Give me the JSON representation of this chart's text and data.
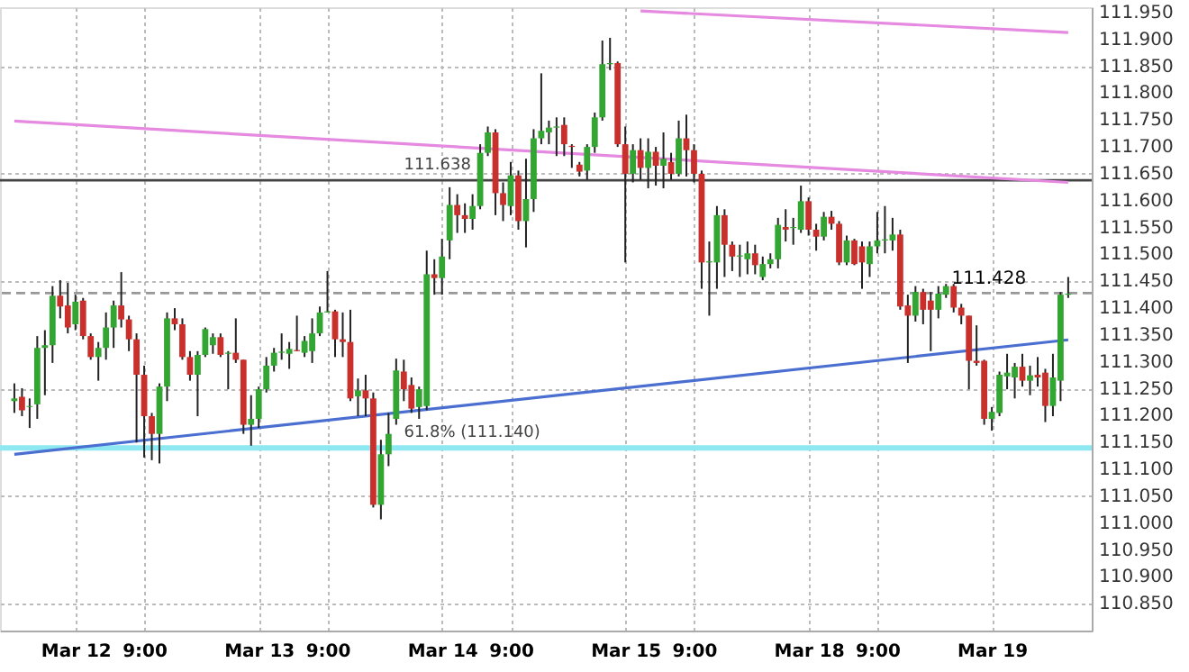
{
  "chart_data": {
    "type": "candlestick",
    "categories": [
      null,
      null,
      null,
      null,
      null,
      null,
      null,
      null,
      "Mar 12",
      null,
      null,
      null,
      null,
      null,
      null,
      null,
      null,
      "9:00",
      null,
      null,
      null,
      null,
      null,
      null,
      null,
      null,
      null,
      null,
      null,
      null,
      null,
      null,
      "Mar 13",
      null,
      null,
      null,
      null,
      null,
      null,
      null,
      null,
      "9:00",
      null,
      null,
      null,
      null,
      null,
      null,
      null,
      null,
      null,
      null,
      null,
      null,
      null,
      null,
      "Mar 14",
      null,
      null,
      null,
      null,
      null,
      null,
      null,
      null,
      "9:00",
      null,
      null,
      null,
      null,
      null,
      null,
      null,
      null,
      null,
      null,
      null,
      null,
      null,
      null,
      "Mar 15",
      null,
      null,
      null,
      null,
      null,
      null,
      null,
      null,
      "9:00",
      null,
      null,
      null,
      null,
      null,
      null,
      null,
      null,
      null,
      null,
      null,
      null,
      null,
      null,
      "Mar 18",
      null,
      null,
      null,
      null,
      null,
      null,
      null,
      null,
      "9:00",
      null,
      null,
      null,
      null,
      null,
      null,
      null,
      null,
      null,
      null,
      null,
      null,
      null,
      null,
      "Mar 19",
      null,
      null,
      null,
      null,
      null,
      null,
      null,
      null,
      null,
      null
    ],
    "ohlc": [
      [
        111.227,
        111.26,
        111.205,
        111.232
      ],
      [
        111.235,
        111.251,
        111.199,
        111.21
      ],
      [
        111.216,
        111.232,
        111.177,
        111.218
      ],
      [
        111.221,
        111.348,
        111.194,
        111.326
      ],
      [
        111.326,
        111.359,
        111.238,
        111.331
      ],
      [
        111.331,
        111.441,
        111.298,
        111.423
      ],
      [
        111.423,
        111.452,
        111.381,
        111.403
      ],
      [
        111.405,
        111.447,
        111.353,
        111.364
      ],
      [
        111.37,
        111.425,
        111.359,
        111.412
      ],
      [
        111.414,
        111.419,
        111.342,
        111.348
      ],
      [
        111.348,
        111.353,
        111.304,
        111.309
      ],
      [
        111.309,
        111.337,
        111.265,
        111.326
      ],
      [
        111.326,
        111.392,
        111.304,
        111.364
      ],
      [
        111.364,
        111.414,
        111.326,
        111.405
      ],
      [
        111.405,
        111.467,
        111.364,
        111.379
      ],
      [
        111.379,
        111.386,
        111.32,
        111.342
      ],
      [
        111.342,
        111.353,
        111.15,
        111.276
      ],
      [
        111.276,
        111.293,
        111.122,
        111.199
      ],
      [
        111.199,
        111.205,
        111.117,
        111.166
      ],
      [
        111.166,
        111.26,
        111.111,
        111.254
      ],
      [
        111.254,
        111.392,
        111.227,
        111.381
      ],
      [
        111.381,
        111.4,
        111.359,
        111.37
      ],
      [
        111.37,
        111.381,
        111.304,
        111.309
      ],
      [
        111.309,
        111.32,
        111.265,
        111.276
      ],
      [
        111.276,
        111.32,
        111.199,
        111.313
      ],
      [
        111.313,
        111.364,
        111.309,
        111.361
      ],
      [
        111.331,
        111.353,
        111.315,
        111.346
      ],
      [
        111.346,
        111.353,
        111.309,
        111.313
      ],
      [
        111.315,
        111.32,
        111.249,
        111.317
      ],
      [
        111.317,
        111.381,
        111.298,
        111.304
      ],
      [
        111.304,
        111.304,
        111.166,
        111.183
      ],
      [
        111.183,
        111.238,
        111.144,
        111.194
      ],
      [
        111.194,
        111.254,
        111.177,
        111.249
      ],
      [
        111.249,
        111.309,
        111.243,
        111.293
      ],
      [
        111.293,
        111.326,
        111.282,
        111.317
      ],
      [
        111.317,
        111.353,
        111.304,
        111.319
      ],
      [
        111.315,
        111.337,
        111.287,
        111.324
      ],
      [
        111.322,
        111.386,
        111.32,
        111.32
      ],
      [
        111.317,
        111.348,
        111.309,
        111.339
      ],
      [
        111.32,
        111.381,
        111.298,
        111.353
      ],
      [
        111.353,
        111.403,
        111.348,
        111.392
      ],
      [
        111.392,
        111.469,
        111.392,
        111.394
      ],
      [
        111.394,
        111.397,
        111.309,
        111.342
      ],
      [
        111.342,
        111.392,
        111.309,
        111.337
      ],
      [
        111.337,
        111.397,
        111.227,
        111.232
      ],
      [
        111.236,
        111.269,
        111.199,
        111.247
      ],
      [
        111.247,
        111.276,
        111.199,
        111.232
      ],
      [
        111.232,
        111.243,
        111.029,
        111.034
      ],
      [
        111.034,
        111.155,
        111.007,
        111.128
      ],
      [
        111.128,
        111.205,
        111.106,
        111.166
      ],
      [
        111.194,
        111.306,
        111.183,
        111.284
      ],
      [
        111.282,
        111.304,
        111.227,
        111.249
      ],
      [
        111.257,
        111.271,
        111.205,
        111.213
      ],
      [
        111.216,
        111.254,
        111.194,
        111.249
      ],
      [
        111.218,
        111.507,
        111.21,
        111.463
      ],
      [
        111.463,
        111.491,
        111.425,
        111.456
      ],
      [
        111.456,
        111.529,
        111.425,
        111.496
      ],
      [
        111.526,
        111.625,
        111.491,
        111.592
      ],
      [
        111.592,
        111.612,
        111.54,
        111.573
      ],
      [
        111.573,
        111.595,
        111.54,
        111.566
      ],
      [
        111.566,
        111.612,
        111.546,
        111.59
      ],
      [
        111.59,
        111.705,
        111.584,
        111.689
      ],
      [
        111.689,
        111.738,
        111.683,
        111.727
      ],
      [
        111.727,
        111.733,
        111.573,
        111.614
      ],
      [
        111.614,
        111.634,
        111.562,
        111.592
      ],
      [
        111.59,
        111.672,
        111.573,
        111.647
      ],
      [
        111.647,
        111.656,
        111.546,
        111.562
      ],
      [
        111.562,
        111.678,
        111.513,
        111.603
      ],
      [
        111.603,
        111.733,
        111.579,
        111.716
      ],
      [
        111.716,
        111.837,
        111.705,
        111.73
      ],
      [
        111.727,
        111.749,
        111.705,
        111.736
      ],
      [
        111.736,
        111.755,
        111.683,
        111.738
      ],
      [
        111.741,
        111.755,
        111.683,
        111.705
      ],
      [
        111.702,
        111.705,
        111.661,
        111.7
      ],
      [
        111.667,
        111.672,
        111.645,
        111.654
      ],
      [
        111.656,
        111.705,
        111.639,
        111.7
      ],
      [
        111.7,
        111.764,
        111.689,
        111.755
      ],
      [
        111.755,
        111.898,
        111.749,
        111.854
      ],
      [
        111.854,
        111.903,
        111.843,
        111.856
      ],
      [
        111.856,
        111.859,
        111.7,
        111.705
      ],
      [
        111.705,
        111.738,
        111.485,
        111.65
      ],
      [
        111.65,
        111.705,
        111.634,
        111.694
      ],
      [
        111.694,
        111.716,
        111.639,
        111.661
      ],
      [
        111.661,
        111.716,
        111.623,
        111.691
      ],
      [
        111.691,
        111.7,
        111.628,
        111.665
      ],
      [
        111.665,
        111.727,
        111.623,
        111.678
      ],
      [
        111.672,
        111.689,
        111.639,
        111.65
      ],
      [
        111.65,
        111.749,
        111.645,
        111.716
      ],
      [
        111.716,
        111.76,
        111.645,
        111.694
      ],
      [
        111.694,
        111.705,
        111.634,
        111.65
      ],
      [
        111.65,
        111.656,
        111.436,
        111.485
      ],
      [
        111.485,
        111.524,
        111.386,
        111.487
      ],
      [
        111.485,
        111.59,
        111.436,
        111.573
      ],
      [
        111.573,
        111.584,
        111.458,
        111.518
      ],
      [
        111.518,
        111.524,
        111.469,
        111.496
      ],
      [
        111.496,
        111.518,
        111.458,
        111.498
      ],
      [
        111.491,
        111.524,
        111.463,
        111.502
      ],
      [
        111.502,
        111.518,
        111.463,
        111.48
      ],
      [
        111.458,
        111.496,
        111.452,
        111.482
      ],
      [
        111.482,
        111.502,
        111.474,
        111.491
      ],
      [
        111.491,
        111.568,
        111.474,
        111.555
      ],
      [
        111.551,
        111.584,
        111.524,
        111.546
      ],
      [
        111.549,
        111.568,
        111.518,
        111.551
      ],
      [
        111.546,
        111.628,
        111.54,
        111.599
      ],
      [
        111.599,
        111.606,
        111.535,
        111.546
      ],
      [
        111.546,
        111.557,
        111.507,
        111.533
      ],
      [
        111.533,
        111.579,
        111.526,
        111.57
      ],
      [
        111.57,
        111.581,
        111.546,
        111.557
      ],
      [
        111.557,
        111.562,
        111.48,
        111.485
      ],
      [
        111.485,
        111.535,
        111.48,
        111.526
      ],
      [
        111.526,
        111.529,
        111.48,
        111.482
      ],
      [
        111.515,
        111.524,
        111.436,
        111.485
      ],
      [
        111.482,
        111.524,
        111.458,
        111.515
      ],
      [
        111.515,
        111.579,
        111.502,
        111.526
      ],
      [
        111.526,
        111.59,
        111.502,
        111.528
      ],
      [
        111.526,
        111.568,
        111.507,
        111.537
      ],
      [
        111.537,
        111.546,
        111.397,
        111.403
      ],
      [
        111.405,
        111.425,
        111.298,
        111.386
      ],
      [
        111.386,
        111.441,
        111.375,
        111.43
      ],
      [
        111.43,
        111.436,
        111.37,
        111.397
      ],
      [
        111.414,
        111.43,
        111.32,
        111.397
      ],
      [
        111.397,
        111.441,
        111.381,
        111.427
      ],
      [
        111.425,
        111.445,
        111.419,
        111.441
      ],
      [
        111.441,
        111.445,
        111.392,
        111.401
      ],
      [
        111.401,
        111.408,
        111.37,
        111.386
      ],
      [
        111.386,
        111.386,
        111.249,
        111.302
      ],
      [
        111.302,
        111.368,
        111.293,
        111.298
      ],
      [
        111.302,
        111.304,
        111.183,
        111.194
      ],
      [
        111.194,
        111.216,
        111.172,
        111.207
      ],
      [
        111.205,
        111.282,
        111.199,
        111.276
      ],
      [
        111.273,
        111.315,
        111.249,
        111.28
      ],
      [
        111.271,
        111.298,
        111.232,
        111.291
      ],
      [
        111.291,
        111.315,
        111.254,
        111.265
      ],
      [
        111.265,
        111.293,
        111.238,
        111.275
      ],
      [
        111.276,
        111.309,
        111.254,
        111.271
      ],
      [
        111.28,
        111.287,
        111.188,
        111.218
      ],
      [
        111.218,
        111.315,
        111.199,
        111.271
      ],
      [
        111.265,
        111.43,
        111.227,
        111.425
      ],
      [
        111.425,
        111.458,
        111.419,
        111.427
      ]
    ],
    "colors": [
      "#33a532",
      "#c9302c",
      "#33a532",
      "#33a532",
      "#33a532",
      "#33a532",
      "#c9302c",
      "#c9302c",
      "#33a532",
      "#c9302c",
      "#c9302c",
      "#33a532",
      "#33a532",
      "#33a532",
      "#c9302c",
      "#c9302c",
      "#c9302c",
      "#c9302c",
      "#c9302c",
      "#33a532",
      "#33a532",
      "#c9302c",
      "#c9302c",
      "#c9302c",
      "#33a532",
      "#33a532",
      "#33a532",
      "#c9302c",
      "#33a532",
      "#c9302c",
      "#c9302c",
      "#33a532",
      "#33a532",
      "#33a532",
      "#33a532",
      "#33a532",
      "#33a532",
      "#c9302c",
      "#33a532",
      "#33a532",
      "#33a532",
      "#33a532",
      "#c9302c",
      "#c9302c",
      "#c9302c",
      "#33a532",
      "#c9302c",
      "#c9302c",
      "#33a532",
      "#33a532",
      "#33a532",
      "#c9302c",
      "#c9302c",
      "#33a532",
      "#33a532",
      "#c9302c",
      "#33a532",
      "#33a532",
      "#c9302c",
      "#c9302c",
      "#33a532",
      "#33a532",
      "#33a532",
      "#c9302c",
      "#c9302c",
      "#33a532",
      "#c9302c",
      "#33a532",
      "#33a532",
      "#33a532",
      "#33a532",
      "#33a532",
      "#c9302c",
      "#c9302c",
      "#c9302c",
      "#33a532",
      "#33a532",
      "#33a532",
      "#33a532",
      "#c9302c",
      "#c9302c",
      "#33a532",
      "#c9302c",
      "#33a532",
      "#c9302c",
      "#33a532",
      "#c9302c",
      "#33a532",
      "#c9302c",
      "#c9302c",
      "#c9302c",
      "#33a532",
      "#33a532",
      "#c9302c",
      "#c9302c",
      "#33a532",
      "#33a532",
      "#c9302c",
      "#33a532",
      "#33a532",
      "#33a532",
      "#c9302c",
      "#33a532",
      "#33a532",
      "#c9302c",
      "#c9302c",
      "#33a532",
      "#c9302c",
      "#c9302c",
      "#33a532",
      "#c9302c",
      "#c9302c",
      "#33a532",
      "#33a532",
      "#33a532",
      "#33a532",
      "#c9302c",
      "#c9302c",
      "#33a532",
      "#c9302c",
      "#c9302c",
      "#33a532",
      "#33a532",
      "#c9302c",
      "#c9302c",
      "#c9302c",
      "#c9302c",
      "#c9302c",
      "#33a532",
      "#33a532",
      "#33a532",
      "#33a532",
      "#c9302c",
      "#33a532",
      "#c9302c",
      "#c9302c",
      "#33a532",
      "#33a532",
      "#33a532"
    ],
    "series": [
      {
        "type": "line",
        "color": "#4a6fd0",
        "values": [
          111.128,
          null,
          null,
          null,
          null,
          null,
          null,
          null,
          null,
          null,
          null,
          null,
          null,
          null,
          null,
          null,
          null,
          null,
          null,
          null,
          null,
          null,
          null,
          null,
          null,
          null,
          null,
          null,
          null,
          null,
          null,
          null,
          null,
          null,
          null,
          null,
          null,
          null,
          null,
          null,
          null,
          null,
          null,
          null,
          null,
          null,
          null,
          null,
          null,
          null,
          null,
          null,
          null,
          null,
          null,
          null,
          null,
          null,
          null,
          null,
          null,
          null,
          null,
          null,
          null,
          null,
          null,
          null,
          null,
          null,
          null,
          null,
          null,
          null,
          null,
          null,
          null,
          null,
          null,
          null,
          null,
          null,
          null,
          null,
          null,
          null,
          null,
          null,
          null,
          null,
          null,
          null,
          null,
          null,
          null,
          null,
          null,
          null,
          null,
          null,
          null,
          null,
          null,
          null,
          null,
          null,
          null,
          null,
          null,
          null,
          null,
          null,
          null,
          null,
          null,
          null,
          null,
          null,
          null,
          null,
          null,
          null,
          null,
          null,
          null,
          null,
          null,
          null,
          null,
          null,
          null,
          null,
          null,
          null,
          null,
          null,
          null,
          null,
          111.341
        ]
      },
      {
        "type": "line",
        "color": "#e58ae0",
        "values": [
          111.748,
          null,
          null,
          null,
          null,
          null,
          null,
          null,
          null,
          null,
          null,
          null,
          null,
          null,
          null,
          null,
          null,
          null,
          null,
          null,
          null,
          null,
          null,
          null,
          null,
          null,
          null,
          null,
          null,
          null,
          null,
          null,
          null,
          null,
          null,
          null,
          null,
          null,
          null,
          null,
          null,
          null,
          null,
          null,
          null,
          null,
          null,
          null,
          null,
          null,
          null,
          null,
          null,
          null,
          null,
          null,
          null,
          null,
          null,
          null,
          null,
          null,
          null,
          null,
          null,
          null,
          null,
          null,
          null,
          null,
          null,
          null,
          null,
          null,
          null,
          null,
          null,
          null,
          null,
          null,
          null,
          null,
          null,
          null,
          null,
          null,
          null,
          null,
          null,
          null,
          null,
          null,
          null,
          null,
          null,
          null,
          null,
          null,
          null,
          null,
          null,
          null,
          null,
          null,
          null,
          null,
          null,
          null,
          null,
          null,
          null,
          null,
          null,
          null,
          null,
          null,
          null,
          null,
          null,
          null,
          null,
          null,
          null,
          null,
          null,
          null,
          null,
          null,
          null,
          null,
          null,
          null,
          null,
          null,
          null,
          null,
          null,
          null,
          111.634
        ]
      },
      {
        "type": "line",
        "color": "#e58ae0",
        "values": [
          null,
          null,
          null,
          null,
          null,
          null,
          null,
          null,
          null,
          null,
          null,
          null,
          null,
          null,
          null,
          null,
          null,
          null,
          null,
          null,
          null,
          null,
          null,
          null,
          null,
          null,
          null,
          null,
          null,
          null,
          null,
          null,
          null,
          null,
          null,
          null,
          null,
          null,
          null,
          null,
          null,
          null,
          null,
          null,
          null,
          null,
          null,
          null,
          null,
          null,
          null,
          null,
          null,
          null,
          null,
          null,
          null,
          null,
          null,
          null,
          null,
          null,
          null,
          null,
          null,
          null,
          null,
          null,
          null,
          null,
          null,
          null,
          null,
          null,
          null,
          null,
          null,
          null,
          null,
          null,
          null,
          null,
          111.953,
          null,
          null,
          null,
          null,
          null,
          null,
          null,
          null,
          null,
          null,
          null,
          null,
          null,
          null,
          null,
          null,
          null,
          null,
          null,
          null,
          null,
          null,
          null,
          null,
          null,
          null,
          null,
          null,
          null,
          null,
          null,
          null,
          null,
          null,
          null,
          null,
          null,
          null,
          null,
          null,
          null,
          null,
          null,
          null,
          null,
          null,
          null,
          null,
          null,
          null,
          null,
          null,
          null,
          null,
          null,
          111.913
        ]
      }
    ],
    "ref_lines": [
      {
        "axis": "y",
        "value": 111.638,
        "label": "111.638",
        "color": "#444444",
        "line_style": "solid"
      },
      {
        "axis": "y",
        "value": 111.14,
        "label": "61.8% (111.140)",
        "color": "#8ee8f2",
        "line_style": "solid"
      },
      {
        "axis": "y",
        "value": 111.428,
        "label": "111.428",
        "color": "#999999",
        "line_style": "dashed"
      }
    ],
    "ylim": [
      110.8,
      111.96
    ],
    "yticks": [
      {
        "value": 110.85,
        "label": "110.850"
      },
      {
        "value": 110.9,
        "label": "110.900"
      },
      {
        "value": 110.95,
        "label": "110.950"
      },
      {
        "value": 111.0,
        "label": "111.000"
      },
      {
        "value": 111.05,
        "label": "111.050"
      },
      {
        "value": 111.1,
        "label": "111.100"
      },
      {
        "value": 111.15,
        "label": "111.150"
      },
      {
        "value": 111.2,
        "label": "111.200"
      },
      {
        "value": 111.25,
        "label": "111.250"
      },
      {
        "value": 111.3,
        "label": "111.300"
      },
      {
        "value": 111.35,
        "label": "111.350"
      },
      {
        "value": 111.4,
        "label": "111.400"
      },
      {
        "value": 111.45,
        "label": "111.450"
      },
      {
        "value": 111.5,
        "label": "111.500"
      },
      {
        "value": 111.55,
        "label": "111.550"
      },
      {
        "value": 111.6,
        "label": "111.600"
      },
      {
        "value": 111.65,
        "label": "111.650"
      },
      {
        "value": 111.7,
        "label": "111.700"
      },
      {
        "value": 111.75,
        "label": "111.750"
      },
      {
        "value": 111.8,
        "label": "111.800"
      },
      {
        "value": 111.85,
        "label": "111.850"
      },
      {
        "value": 111.9,
        "label": "111.900"
      },
      {
        "value": 111.95,
        "label": "111.950"
      }
    ],
    "grid": true
  }
}
